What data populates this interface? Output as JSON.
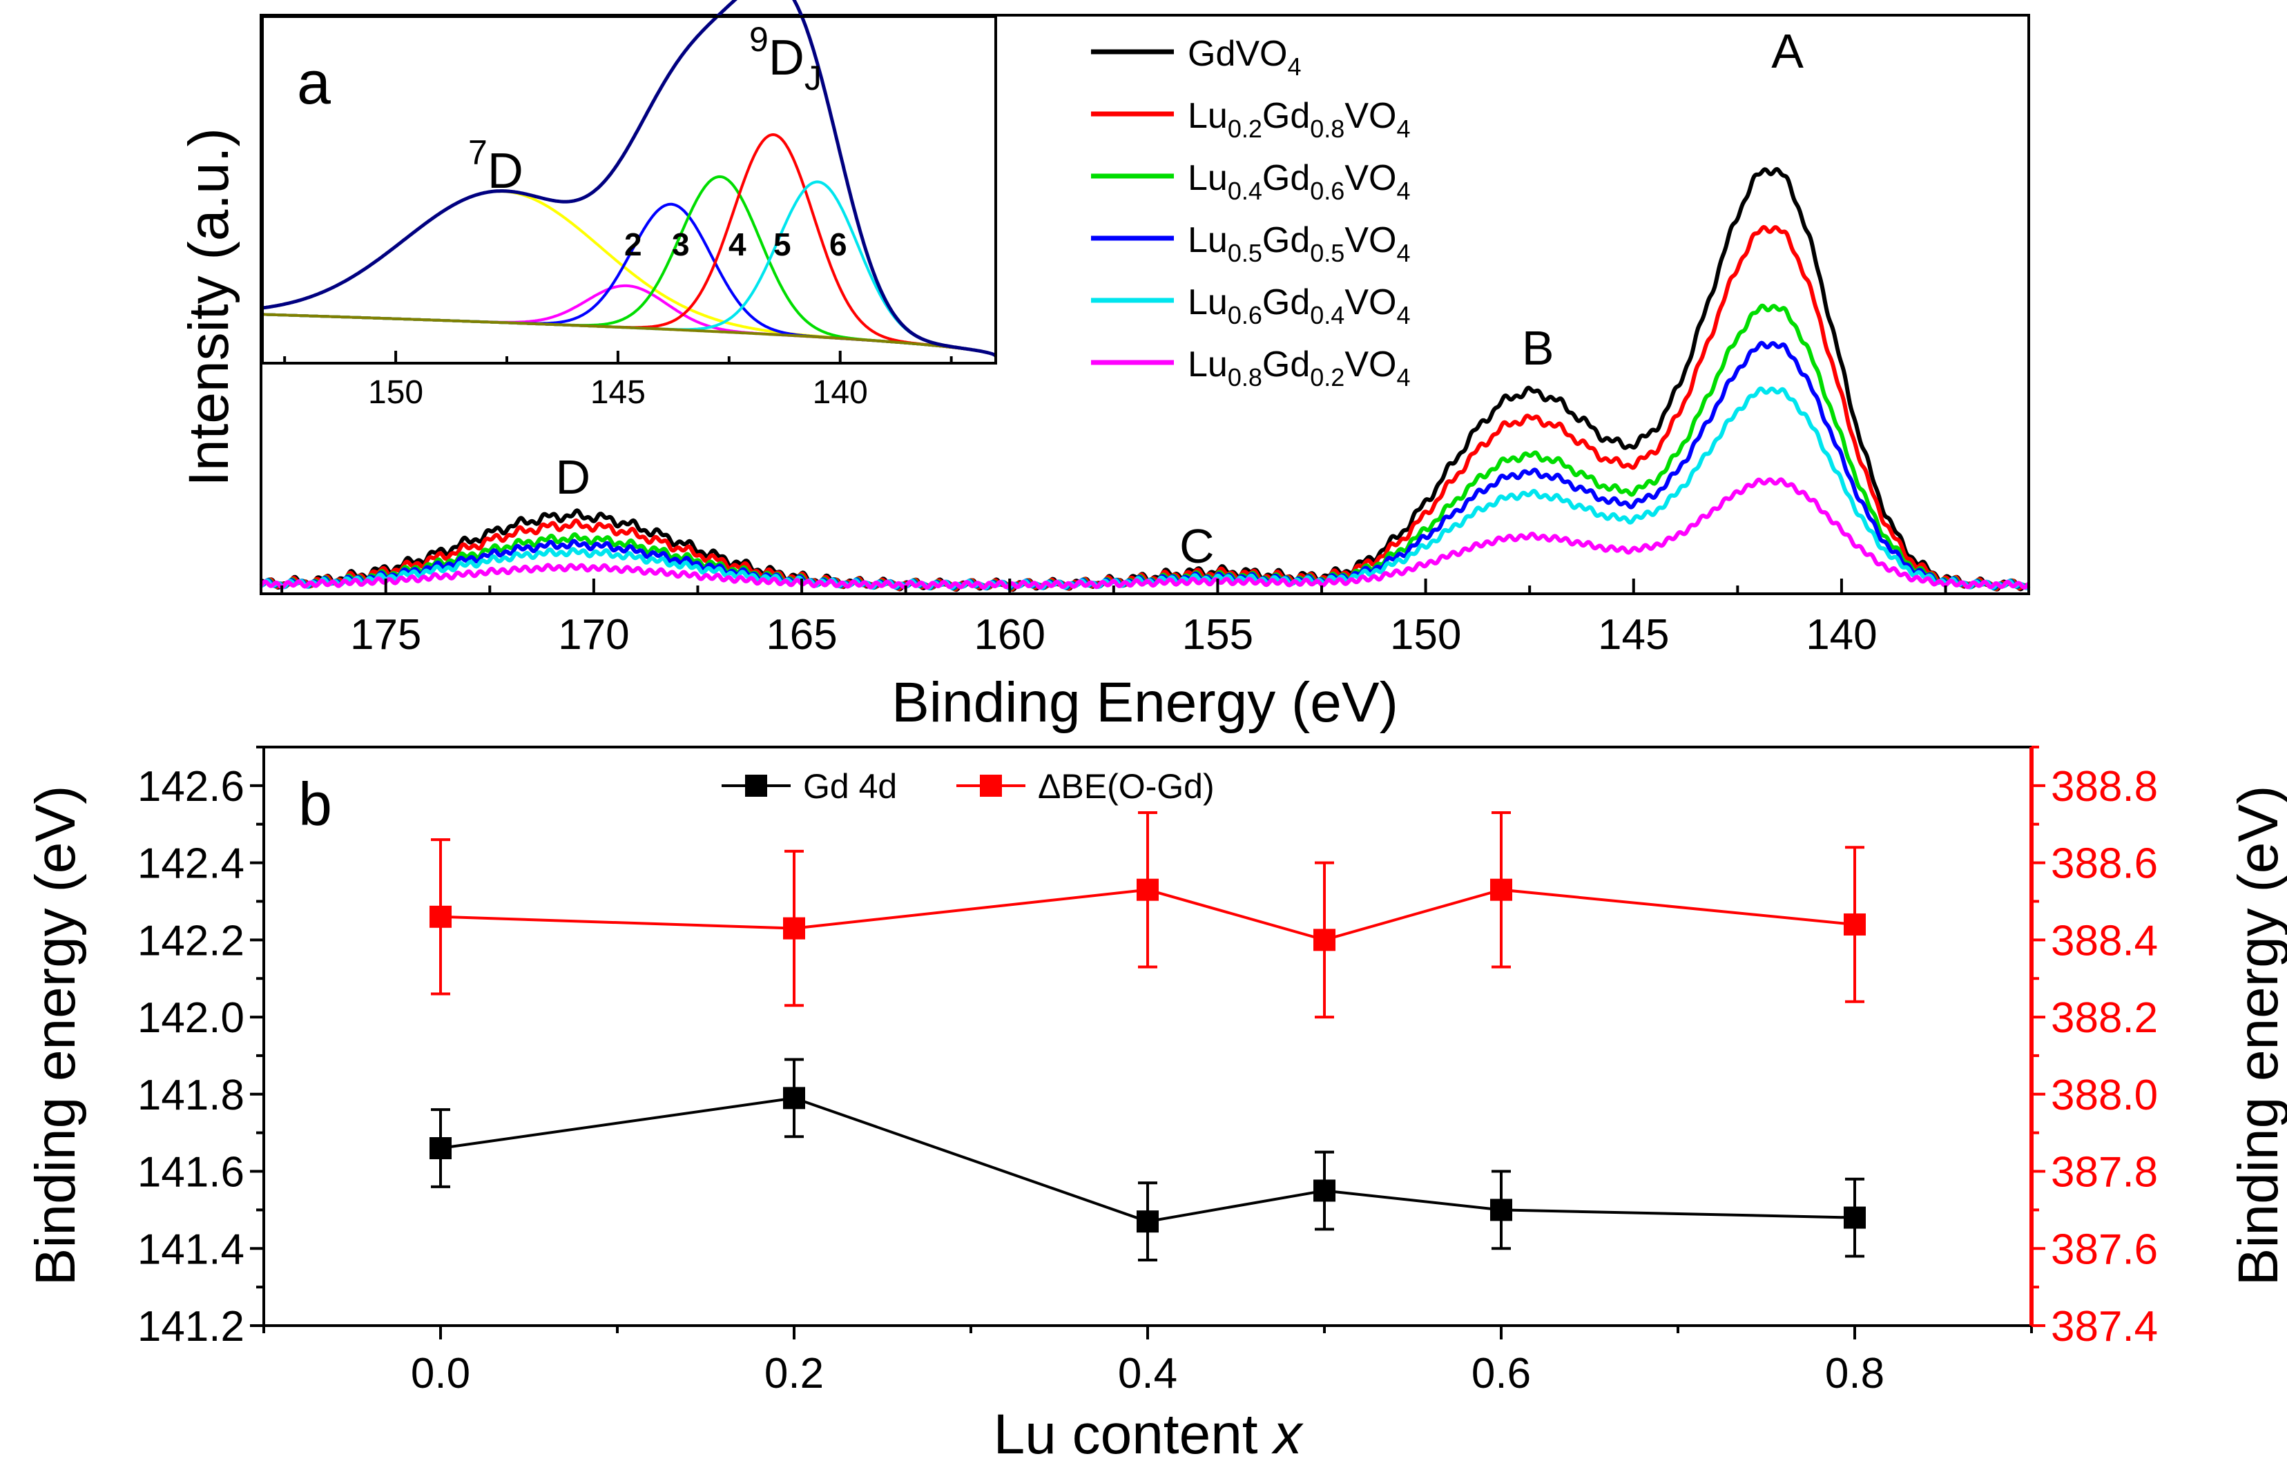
{
  "figure": {
    "panel_a_letter": "a",
    "panel_b_letter": "b"
  },
  "chart_data": [
    {
      "id": "panel-a-main",
      "type": "line",
      "title": "",
      "xlabel": "Binding Energy (eV)",
      "ylabel": "Intensity (a.u.)",
      "xlim": [
        178.0,
        135.5
      ],
      "x_reversed": true,
      "ylim": [
        0,
        1.0
      ],
      "x_ticks": [
        175,
        170,
        165,
        160,
        155,
        150,
        145,
        140
      ],
      "y_ticks_shown": false,
      "annotations": [
        {
          "label": "A",
          "x": 141.3
        },
        {
          "label": "B",
          "x": 147.3
        },
        {
          "label": "C",
          "x": 155.5
        },
        {
          "label": "D",
          "x": 170.5
        }
      ],
      "series": [
        {
          "name": "GdVO4",
          "legend_main": "GdVO",
          "legend_parts": [],
          "legend_last": "4",
          "legend_end": "",
          "color": "#000000",
          "scale": 1.0,
          "peak_A": 0.92
        },
        {
          "name": "Lu0.2Gd0.8VO4",
          "legend_main": "Lu",
          "legend_parts": [
            [
              "0.2",
              "Gd"
            ],
            [
              "0.8",
              "VO"
            ]
          ],
          "legend_last": "4",
          "legend_end": "",
          "color": "#ff0000",
          "scale": 0.86,
          "peak_A": 0.8
        },
        {
          "name": "Lu0.4Gd0.6VO4",
          "legend_main": "Lu",
          "legend_parts": [
            [
              "0.4",
              "Gd"
            ],
            [
              "0.6",
              "VO"
            ]
          ],
          "legend_last": "4",
          "legend_end": "",
          "color": "#00dd00",
          "scale": 0.67,
          "peak_A": 0.62
        },
        {
          "name": "Lu0.5Gd0.5VO4",
          "legend_main": "Lu",
          "legend_parts": [
            [
              "0.5",
              "Gd"
            ],
            [
              "0.5",
              "VO"
            ]
          ],
          "legend_last": "4",
          "legend_end": "",
          "color": "#0000ff",
          "scale": 0.58,
          "peak_A": 0.54
        },
        {
          "name": "Lu0.6Gd0.4VO4",
          "legend_main": "Lu",
          "legend_parts": [
            [
              "0.6",
              "Gd"
            ],
            [
              "0.4",
              "VO"
            ]
          ],
          "legend_last": "4",
          "legend_end": "",
          "color": "#00e5ee",
          "scale": 0.47,
          "peak_A": 0.44
        },
        {
          "name": "Lu0.8Gd0.2VO4",
          "legend_main": "Lu",
          "legend_parts": [
            [
              "0.8",
              "Gd"
            ],
            [
              "0.2",
              "VO"
            ]
          ],
          "legend_last": "4",
          "legend_end": "",
          "color": "#ff00ff",
          "scale": 0.25,
          "peak_A": 0.23
        }
      ]
    },
    {
      "id": "panel-a-inset",
      "type": "line",
      "title": "",
      "xlim": [
        153.0,
        136.5
      ],
      "x_reversed": true,
      "x_ticks": [
        150,
        145,
        140
      ],
      "labels": {
        "peak_7D": {
          "sup": "7",
          "main": "D",
          "sub": ""
        },
        "peak_9DJ": {
          "sup": "9",
          "main": "D",
          "sub": "J"
        },
        "components": [
          "2",
          "3",
          "4",
          "5",
          "6"
        ]
      },
      "components": [
        {
          "name": "7D",
          "center": 147.6,
          "height": 0.44,
          "width": 2.2,
          "color": "#ffff00"
        },
        {
          "name": "2",
          "center": 144.8,
          "height": 0.14,
          "width": 0.9,
          "color": "#ff00ff"
        },
        {
          "name": "3",
          "center": 143.8,
          "height": 0.42,
          "width": 0.9,
          "color": "#0000ff"
        },
        {
          "name": "4",
          "center": 142.7,
          "height": 0.52,
          "width": 0.9,
          "color": "#00dd00"
        },
        {
          "name": "5",
          "center": 141.5,
          "height": 0.67,
          "width": 0.9,
          "color": "#ff0000"
        },
        {
          "name": "6",
          "center": 140.5,
          "height": 0.52,
          "width": 0.9,
          "color": "#00e5ee"
        }
      ],
      "background_color": "#808000",
      "envelope_color": "#000080"
    },
    {
      "id": "panel-b",
      "type": "line",
      "title": "",
      "xlabel_main": "Lu content ",
      "xlabel_var": "x",
      "ylabel_left": "Binding energy (eV)",
      "ylabel_right": "Binding energy (eV)",
      "xlim": [
        -0.1,
        0.9
      ],
      "x_ticks": [
        "0.0",
        "0.2",
        "0.4",
        "0.6",
        "0.8"
      ],
      "ylim_left": [
        141.2,
        142.7
      ],
      "y_ticks_left": [
        "141.2",
        "141.4",
        "141.6",
        "141.8",
        "142.0",
        "142.2",
        "142.4",
        "142.6"
      ],
      "ylim_right": [
        387.4,
        388.9
      ],
      "y_ticks_right": [
        "387.4",
        "387.6",
        "387.8",
        "388.0",
        "388.2",
        "388.4",
        "388.6",
        "388.8"
      ],
      "x": [
        0.0,
        0.2,
        0.4,
        0.5,
        0.6,
        0.8
      ],
      "series": [
        {
          "name": "Gd 4d",
          "axis": "left",
          "color": "#000000",
          "values": [
            141.66,
            141.79,
            141.47,
            141.55,
            141.5,
            141.48
          ],
          "error": 0.1
        },
        {
          "name": "ΔBE(O-Gd)",
          "axis": "right",
          "color": "#ff0000",
          "values": [
            388.46,
            388.43,
            388.53,
            388.4,
            388.53,
            388.44
          ],
          "error": 0.2
        }
      ]
    }
  ]
}
